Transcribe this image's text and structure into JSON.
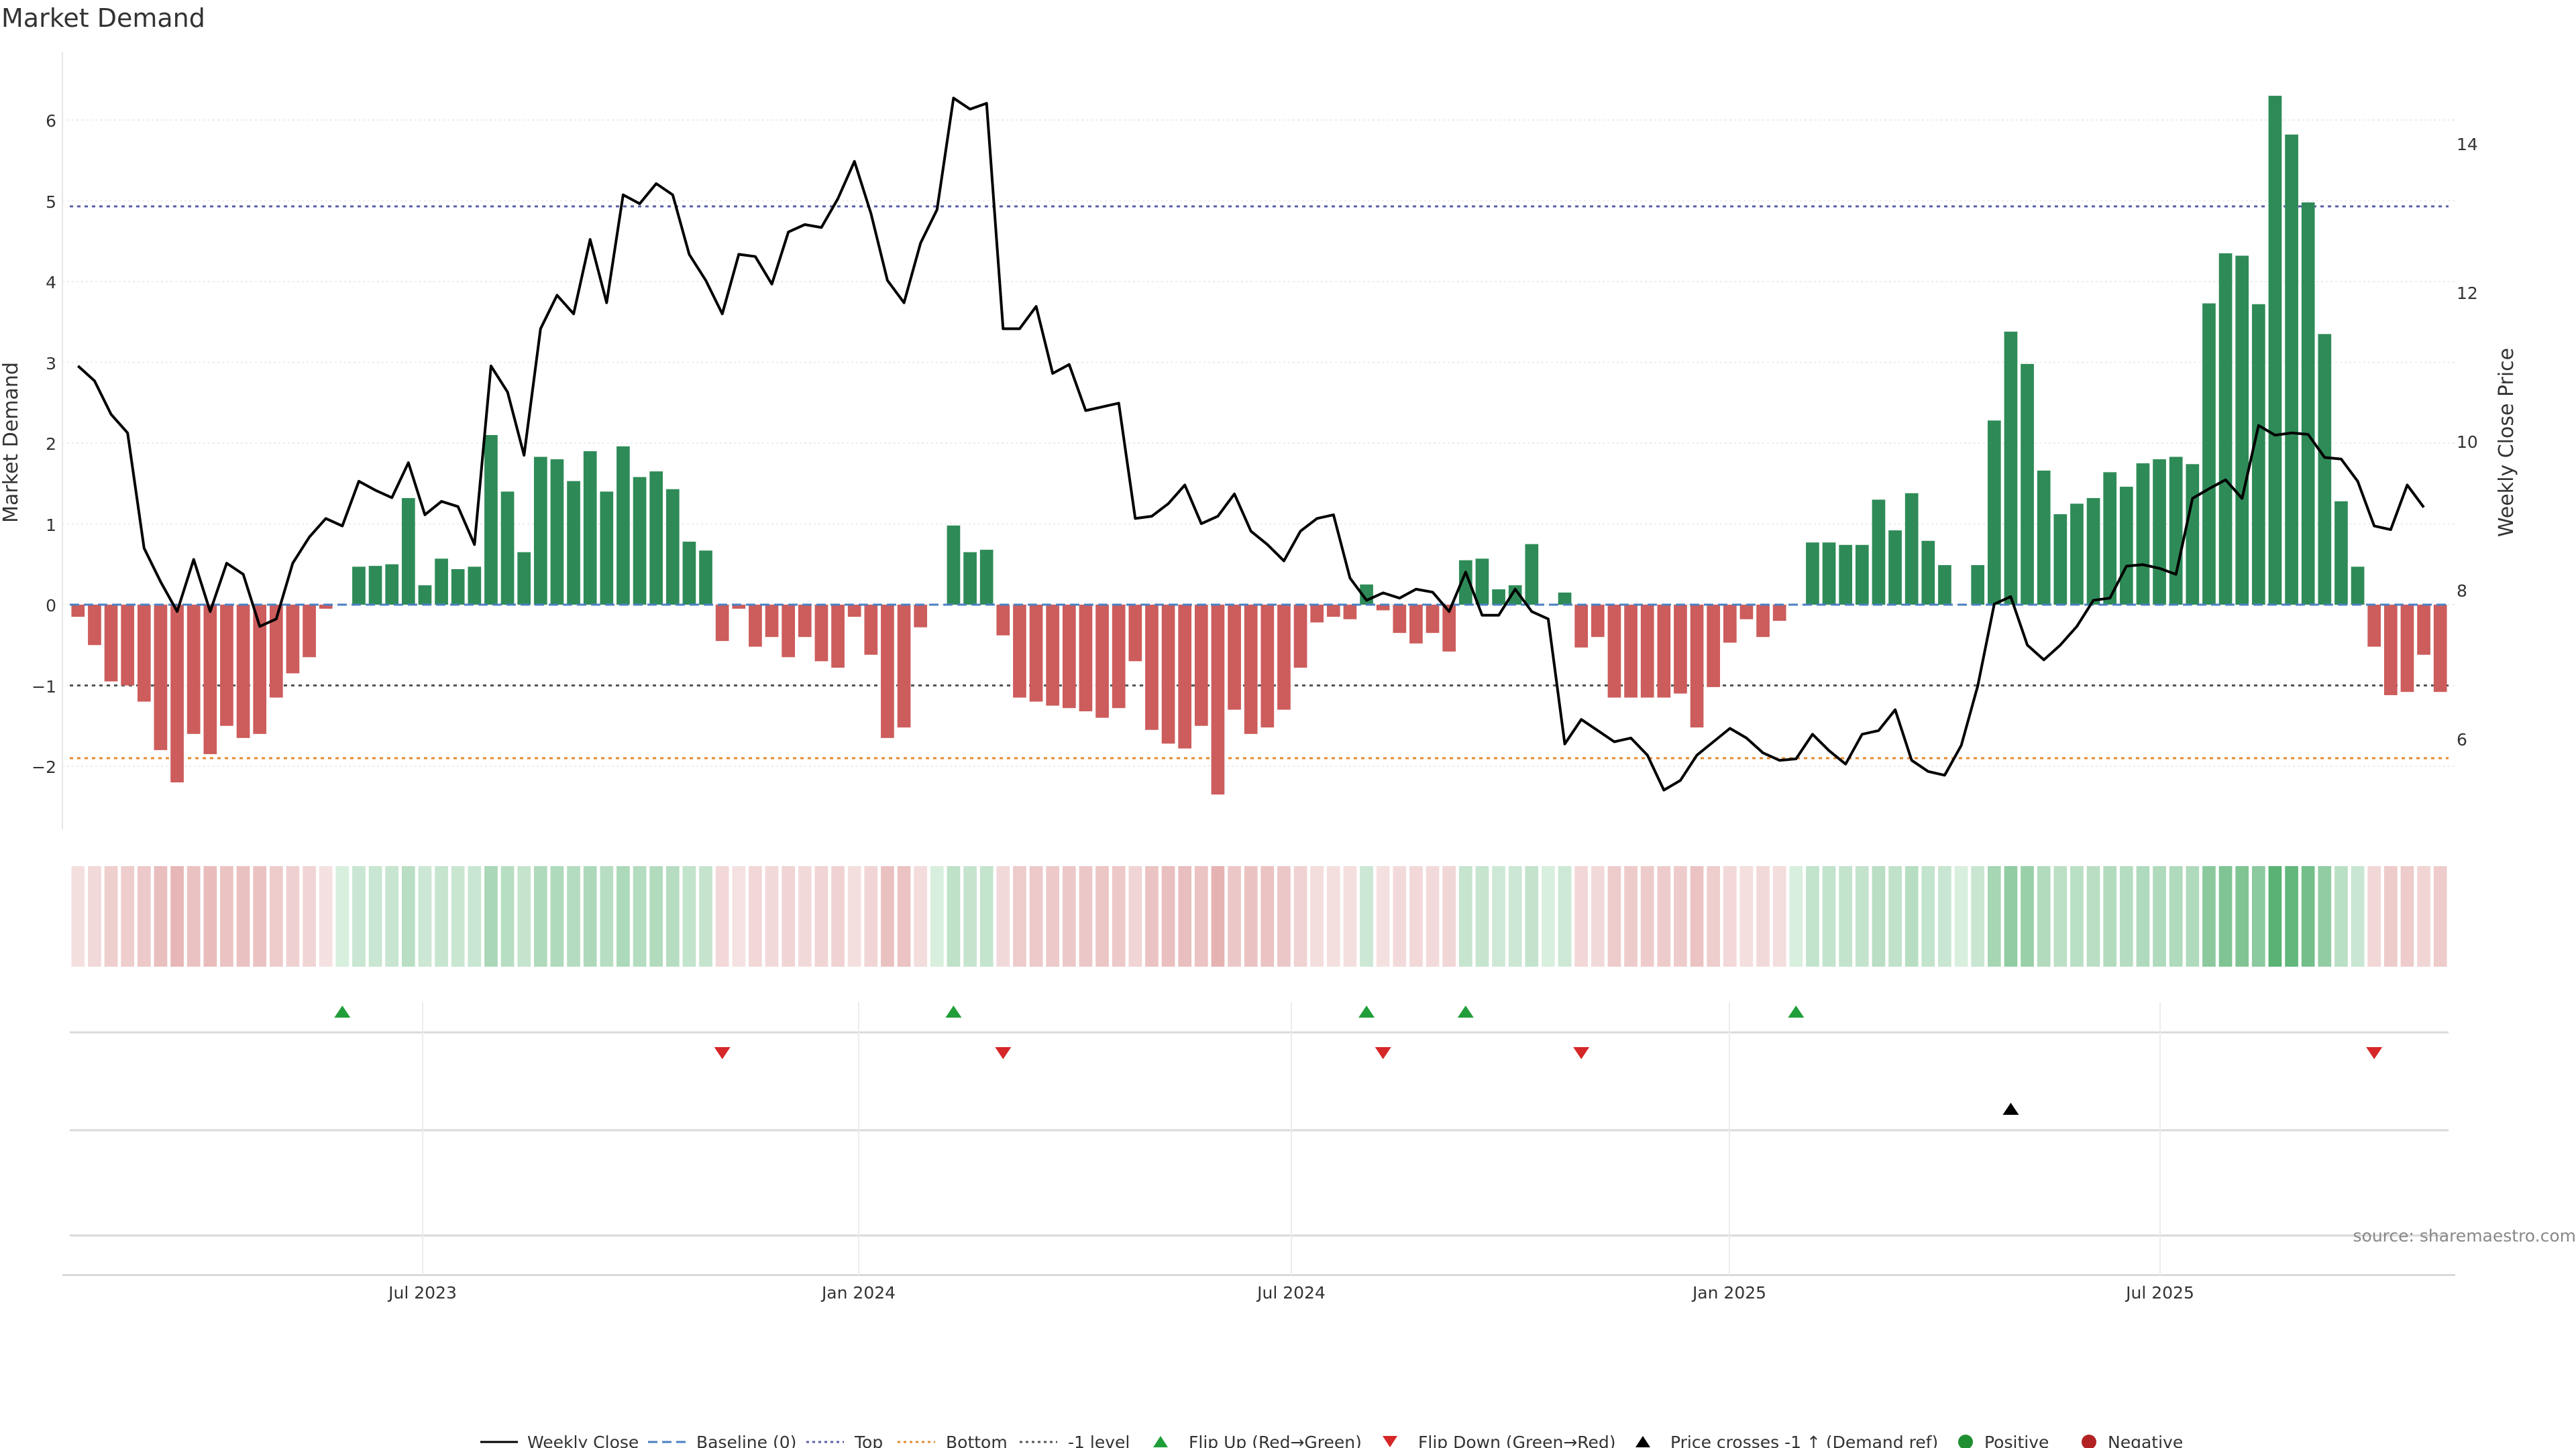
{
  "chart_data": {
    "type": "bar",
    "title": "Market Demand",
    "ylabel": "Market Demand",
    "y2label": "Weekly Close Price",
    "ylim": [
      -2.8,
      6.6
    ],
    "y2lim": [
      5,
      15
    ],
    "yticks": [
      "6",
      "5",
      "4",
      "3",
      "2",
      "1",
      "0",
      "−1",
      "−2"
    ],
    "y2ticks": [
      "14",
      "12",
      "10",
      "8",
      "6"
    ],
    "xlabels": [
      "Jul 2023",
      "Jan 2024",
      "Jul 2024",
      "Jan 2025",
      "Jul 2025"
    ],
    "source": "source: sharemaestro.com",
    "colors": {
      "positive": "#2e8b57",
      "negative": "#cd5c5c",
      "price": "#000000",
      "top": "#5b5ea6",
      "bottom": "#e6892d",
      "minus1": "#555555",
      "flip_up": "#1f9e3a",
      "flip_down": "#d62728"
    },
    "reference_lines": {
      "top": 4.93,
      "bottom": -1.9,
      "minus1": -1.0,
      "baseline": 0
    },
    "demand": [
      -0.15,
      -0.5,
      -0.95,
      -1.0,
      -1.2,
      -1.8,
      -2.2,
      -1.6,
      -1.85,
      -1.5,
      -1.65,
      -1.6,
      -1.15,
      -0.85,
      -0.65,
      -0.05,
      0.0,
      0.47,
      0.48,
      0.5,
      1.32,
      0.24,
      0.57,
      0.44,
      0.47,
      2.1,
      1.4,
      0.65,
      1.83,
      1.8,
      1.53,
      1.9,
      1.4,
      1.96,
      1.58,
      1.65,
      1.43,
      0.78,
      0.67,
      -0.45,
      -0.05,
      -0.52,
      -0.4,
      -0.65,
      -0.4,
      -0.7,
      -0.78,
      -0.15,
      -0.62,
      -1.65,
      -1.52,
      -0.28,
      0.0,
      0.98,
      0.65,
      0.68,
      -0.38,
      -1.15,
      -1.2,
      -1.25,
      -1.28,
      -1.32,
      -1.4,
      -1.28,
      -0.7,
      -1.55,
      -1.72,
      -1.78,
      -1.5,
      -2.35,
      -1.3,
      -1.6,
      -1.52,
      -1.3,
      -0.78,
      -0.22,
      -0.15,
      -0.18,
      0.25,
      -0.07,
      -0.35,
      -0.48,
      -0.35,
      -0.58,
      0.55,
      0.57,
      0.19,
      0.24,
      0.75,
      0.0,
      0.15,
      -0.53,
      -0.4,
      -1.15,
      -1.15,
      -1.15,
      -1.15,
      -1.1,
      -1.52,
      -1.02,
      -0.47,
      -0.18,
      -0.4,
      -0.2,
      0.0,
      0.77,
      0.77,
      0.74,
      0.74,
      1.3,
      0.92,
      1.38,
      0.79,
      0.49,
      0.0,
      0.49,
      2.28,
      3.38,
      2.98,
      1.66,
      1.12,
      1.25,
      1.32,
      1.64,
      1.46,
      1.75,
      1.8,
      1.83,
      1.74,
      3.73,
      4.35,
      4.32,
      3.72,
      6.3,
      5.82,
      4.98,
      3.35,
      1.28,
      0.47,
      -0.52,
      -1.12,
      -1.08,
      -0.62,
      -1.08
    ],
    "price": [
      11.1,
      10.9,
      10.45,
      10.2,
      8.65,
      8.2,
      7.8,
      8.5,
      7.8,
      8.45,
      8.3,
      7.6,
      7.7,
      8.45,
      8.8,
      9.05,
      8.95,
      9.55,
      9.43,
      9.33,
      9.8,
      9.1,
      9.28,
      9.21,
      8.7,
      11.1,
      10.75,
      9.9,
      11.6,
      12.05,
      11.8,
      12.8,
      11.95,
      13.4,
      13.28,
      13.55,
      13.4,
      12.6,
      12.25,
      11.8,
      12.6,
      12.57,
      12.2,
      12.9,
      13.0,
      12.96,
      13.35,
      13.85,
      13.15,
      12.25,
      11.95,
      12.75,
      13.2,
      14.7,
      14.55,
      14.63,
      11.6,
      11.6,
      11.9,
      11.0,
      11.12,
      10.5,
      10.55,
      10.6,
      9.05,
      9.08,
      9.25,
      9.5,
      8.98,
      9.08,
      9.38,
      8.88,
      8.7,
      8.48,
      8.88,
      9.05,
      9.1,
      8.25,
      7.95,
      8.05,
      7.98,
      8.1,
      8.06,
      7.8,
      8.33,
      7.75,
      7.75,
      8.1,
      7.8,
      7.7,
      6.02,
      6.35,
      6.2,
      6.05,
      6.1,
      5.87,
      5.4,
      5.53,
      5.87,
      6.05,
      6.23,
      6.1,
      5.9,
      5.8,
      5.82,
      6.15,
      5.93,
      5.75,
      6.15,
      6.2,
      6.48,
      5.8,
      5.65,
      5.6,
      6.0,
      6.8,
      7.9,
      8.0,
      7.35,
      7.15,
      7.35,
      7.6,
      7.95,
      7.98,
      8.41,
      8.43,
      8.38,
      8.3,
      9.32,
      9.45,
      9.57,
      9.32,
      10.3,
      10.17,
      10.2,
      10.18,
      9.87,
      9.85,
      9.55,
      8.95,
      8.9,
      9.5,
      9.2
    ],
    "flip_up_index": [
      16,
      53,
      78,
      84,
      104
    ],
    "flip_down_index": [
      39,
      56,
      79,
      91,
      139
    ],
    "price_cross_index": [
      117
    ],
    "legend": [
      "Weekly Close",
      "Baseline (0)",
      "Top",
      "Bottom",
      "-1 level",
      "Flip Up (Red→Green)",
      "Flip Down (Green→Red)",
      "Price crosses -1 ↑ (Demand ref)",
      "Positive",
      "Negative"
    ]
  }
}
